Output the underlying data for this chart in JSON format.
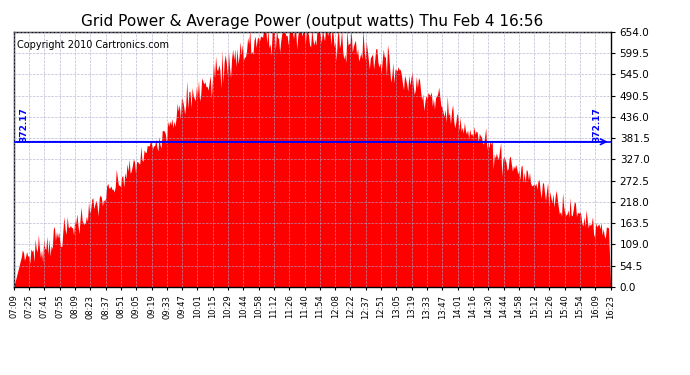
{
  "title": "Grid Power & Average Power (output watts) Thu Feb 4 16:56",
  "copyright": "Copyright 2010 Cartronics.com",
  "average_value": 372.17,
  "ylim": [
    0,
    654.0
  ],
  "yticks": [
    0.0,
    54.5,
    109.0,
    163.5,
    218.0,
    272.5,
    327.0,
    381.5,
    436.0,
    490.5,
    545.0,
    599.5,
    654.0
  ],
  "fill_color": "#FF0000",
  "line_color": "#0000FF",
  "background_color": "#FFFFFF",
  "title_fontsize": 11,
  "copyright_fontsize": 7,
  "x_labels": [
    "07:09",
    "07:25",
    "07:41",
    "07:55",
    "08:09",
    "08:23",
    "08:37",
    "08:51",
    "09:05",
    "09:19",
    "09:33",
    "09:47",
    "10:01",
    "10:15",
    "10:29",
    "10:44",
    "10:58",
    "11:12",
    "11:26",
    "11:40",
    "11:54",
    "12:08",
    "12:22",
    "12:37",
    "12:51",
    "13:05",
    "13:19",
    "13:33",
    "13:47",
    "14:01",
    "14:16",
    "14:30",
    "14:44",
    "14:58",
    "15:12",
    "15:26",
    "15:40",
    "15:54",
    "16:09",
    "16:23"
  ]
}
